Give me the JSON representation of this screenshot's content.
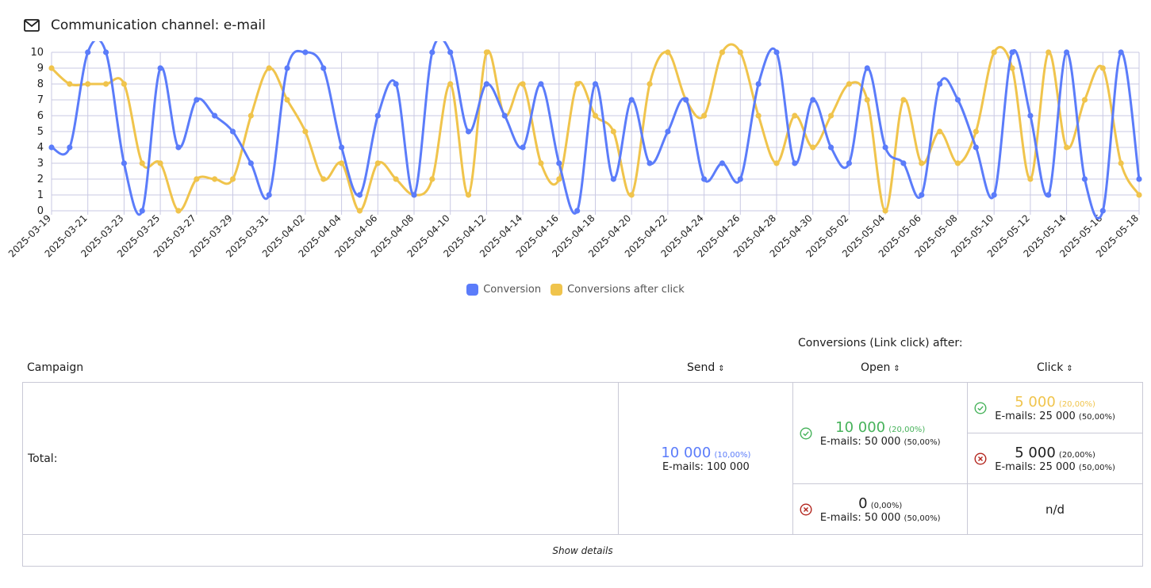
{
  "header": {
    "title": "Communication channel: e-mail"
  },
  "chart_data": {
    "type": "line",
    "x": [
      "2025-03-19",
      "2025-03-20",
      "2025-03-21",
      "2025-03-22",
      "2025-03-23",
      "2025-03-24",
      "2025-03-25",
      "2025-03-26",
      "2025-03-27",
      "2025-03-28",
      "2025-03-29",
      "2025-03-30",
      "2025-03-31",
      "2025-04-01",
      "2025-04-02",
      "2025-04-03",
      "2025-04-04",
      "2025-04-05",
      "2025-04-06",
      "2025-04-07",
      "2025-04-08",
      "2025-04-09",
      "2025-04-10",
      "2025-04-11",
      "2025-04-12",
      "2025-04-13",
      "2025-04-14",
      "2025-04-15",
      "2025-04-16",
      "2025-04-17",
      "2025-04-18",
      "2025-04-19",
      "2025-04-20",
      "2025-04-21",
      "2025-04-22",
      "2025-04-23",
      "2025-04-24",
      "2025-04-25",
      "2025-04-26",
      "2025-04-27",
      "2025-04-28",
      "2025-04-29",
      "2025-04-30",
      "2025-05-01",
      "2025-05-02",
      "2025-05-03",
      "2025-05-04",
      "2025-05-05",
      "2025-05-06",
      "2025-05-07",
      "2025-05-08",
      "2025-05-09",
      "2025-05-10",
      "2025-05-11",
      "2025-05-12",
      "2025-05-13",
      "2025-05-14",
      "2025-05-15",
      "2025-05-16",
      "2025-05-17",
      "2025-05-18"
    ],
    "xticks": [
      "2025-03-19",
      "2025-03-21",
      "2025-03-23",
      "2025-03-25",
      "2025-03-27",
      "2025-03-29",
      "2025-03-31",
      "2025-04-02",
      "2025-04-04",
      "2025-04-06",
      "2025-04-08",
      "2025-04-10",
      "2025-04-12",
      "2025-04-14",
      "2025-04-16",
      "2025-04-18",
      "2025-04-20",
      "2025-04-22",
      "2025-04-24",
      "2025-04-26",
      "2025-04-28",
      "2025-04-30",
      "2025-05-02",
      "2025-05-04",
      "2025-05-06",
      "2025-05-08",
      "2025-05-10",
      "2025-05-12",
      "2025-05-14",
      "2025-05-16",
      "2025-05-18"
    ],
    "yticks": [
      "0",
      "1",
      "2",
      "3",
      "4",
      "5",
      "6",
      "7",
      "8",
      "9",
      "10"
    ],
    "ylim": [
      0,
      10
    ],
    "grid": true,
    "legend": "bottom",
    "series": [
      {
        "name": "Conversion",
        "color": "#5b7cfa",
        "values": [
          4,
          4,
          10,
          10,
          3,
          0,
          9,
          4,
          7,
          6,
          5,
          3,
          1,
          9,
          10,
          9,
          4,
          1,
          6,
          8,
          1,
          10,
          10,
          5,
          8,
          6,
          4,
          8,
          3,
          0,
          8,
          2,
          7,
          3,
          5,
          7,
          2,
          3,
          2,
          8,
          10,
          3,
          7,
          4,
          3,
          9,
          4,
          3,
          1,
          8,
          7,
          4,
          1,
          10,
          6,
          1,
          10,
          2,
          0,
          10,
          2
        ]
      },
      {
        "name": "Conversions after click",
        "color": "#f0c44c",
        "values": [
          9,
          8,
          8,
          8,
          8,
          3,
          3,
          0,
          2,
          2,
          2,
          6,
          9,
          7,
          5,
          2,
          3,
          0,
          3,
          2,
          1,
          2,
          8,
          1,
          10,
          6,
          8,
          3,
          2,
          8,
          6,
          5,
          1,
          8,
          10,
          7,
          6,
          10,
          10,
          6,
          3,
          6,
          4,
          6,
          8,
          7,
          0,
          7,
          3,
          5,
          3,
          5,
          10,
          9,
          2,
          10,
          4,
          7,
          9,
          3,
          1
        ]
      }
    ]
  },
  "table": {
    "group_header": "Conversions (Link click) after:",
    "columns": {
      "campaign": "Campaign",
      "send": "Send",
      "open": "Open",
      "click": "Click",
      "sort_glyph": "⇕"
    },
    "total_label": "Total:",
    "send": {
      "value": "10 000",
      "pct": "(10,00%)",
      "emails": "E-mails: 100 000"
    },
    "open_yes": {
      "value": "10 000",
      "pct": "(20,00%)",
      "emails_label": "E-mails: 50 000",
      "emails_pct": "(50,00%)",
      "icon": "check-circle-icon"
    },
    "open_no": {
      "value": "0",
      "pct": "(0,00%)",
      "emails_label": "E-mails: 50 000",
      "emails_pct": "(50,00%)",
      "icon": "x-circle-icon"
    },
    "click_yes": {
      "value": "5 000",
      "pct": "(20,00%)",
      "emails_label": "E-mails: 25 000",
      "emails_pct": "(50,00%)",
      "icon": "check-circle-icon"
    },
    "click_no": {
      "value": "5 000",
      "pct": "(20,00%)",
      "emails_label": "E-mails: 25 000",
      "emails_pct": "(50,00%)",
      "icon": "x-circle-icon"
    },
    "nd": "n/d",
    "show_details": "Show details"
  },
  "colors": {
    "blue": "#5b7cfa",
    "yellow": "#f0c44c",
    "green": "#46b25a",
    "red": "#b3261e",
    "grid": "#c9c9e3"
  }
}
